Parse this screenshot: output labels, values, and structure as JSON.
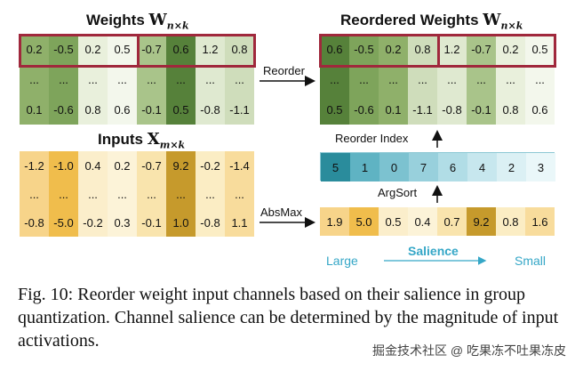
{
  "titles": {
    "weights": "Weights",
    "reordered": "Reordered Weights",
    "inputs": "Inputs",
    "W": "W",
    "X": "X",
    "sub_w": "n×k",
    "sub_x": "m×k"
  },
  "labels": {
    "reorder": "Reorder",
    "absmax": "AbsMax",
    "reorder_index": "Reorder Index",
    "argsort": "ArgSort",
    "large": "Large",
    "salience": "Salience",
    "small": "Small"
  },
  "weights": {
    "rows": [
      [
        "0.2",
        "-0.5",
        "0.2",
        "0.5",
        "-0.7",
        "0.6",
        "1.2",
        "0.8"
      ],
      [
        "...",
        "...",
        "...",
        "...",
        "...",
        "...",
        "...",
        "..."
      ],
      [
        "0.1",
        "-0.6",
        "0.8",
        "0.6",
        "-0.1",
        "0.5",
        "-0.8",
        "-1.1"
      ]
    ],
    "row_colors": [
      [
        "#8fb06a",
        "#7ea45b",
        "#e9f0dc",
        "#f3f7ec",
        "#a9c48a",
        "#56813a",
        "#dfe9d0",
        "#cfddbb"
      ],
      [
        "#8fb06a",
        "#7ea45b",
        "#e9f0dc",
        "#f3f7ec",
        "#a9c48a",
        "#56813a",
        "#dfe9d0",
        "#cfddbb"
      ],
      [
        "#8fb06a",
        "#7ea45b",
        "#e9f0dc",
        "#f3f7ec",
        "#a9c48a",
        "#56813a",
        "#dfe9d0",
        "#cfddbb"
      ]
    ]
  },
  "reordered": {
    "rows": [
      [
        "0.6",
        "-0.5",
        "0.2",
        "0.8",
        "1.2",
        "-0.7",
        "0.2",
        "0.5"
      ],
      [
        "...",
        "...",
        "...",
        "...",
        "...",
        "...",
        "...",
        "..."
      ],
      [
        "0.5",
        "-0.6",
        "0.1",
        "-1.1",
        "-0.8",
        "-0.1",
        "0.8",
        "0.6"
      ]
    ],
    "col_colors": [
      "#56813a",
      "#7ea45b",
      "#8fb06a",
      "#cfddbb",
      "#dfe9d0",
      "#a9c48a",
      "#e9f0dc",
      "#f3f7ec"
    ]
  },
  "inputs": {
    "rows": [
      [
        "-1.2",
        "-1.0",
        "0.4",
        "0.2",
        "-0.7",
        "9.2",
        "-0.2",
        "-1.4"
      ],
      [
        "...",
        "...",
        "...",
        "...",
        "...",
        "...",
        "...",
        "..."
      ],
      [
        "-0.8",
        "-5.0",
        "-0.2",
        "0.3",
        "-0.1",
        "1.0",
        "-0.8",
        "1.1"
      ]
    ],
    "col_colors": [
      "#f7d48a",
      "#f0bd4c",
      "#fbeecb",
      "#fcf3d8",
      "#f9e4ad",
      "#c69a2c",
      "#fbedc4",
      "#f8dc9c"
    ]
  },
  "absmax": {
    "values": [
      "1.9",
      "5.0",
      "0.5",
      "0.4",
      "0.7",
      "9.2",
      "0.8",
      "1.6"
    ],
    "colors": [
      "#f7d48a",
      "#f0bd4c",
      "#fbeecb",
      "#fcf3d8",
      "#f9e4ad",
      "#c69a2c",
      "#fbedc4",
      "#f8dc9c"
    ]
  },
  "reorder_index": {
    "values": [
      "5",
      "1",
      "0",
      "7",
      "6",
      "4",
      "2",
      "3"
    ],
    "colors": [
      "#2a8c9c",
      "#5fb3c3",
      "#7cc2d0",
      "#98d0dc",
      "#b1dde6",
      "#c7e7ee",
      "#dbf0f4",
      "#eaf7f9"
    ]
  },
  "caption": "Fig. 10: Reorder weight input channels based on their salience in group quantization. Channel salience can be determined by the magnitude of input activations.",
  "watermark": "掘金技术社区 @ 吃果冻不吐果冻皮"
}
